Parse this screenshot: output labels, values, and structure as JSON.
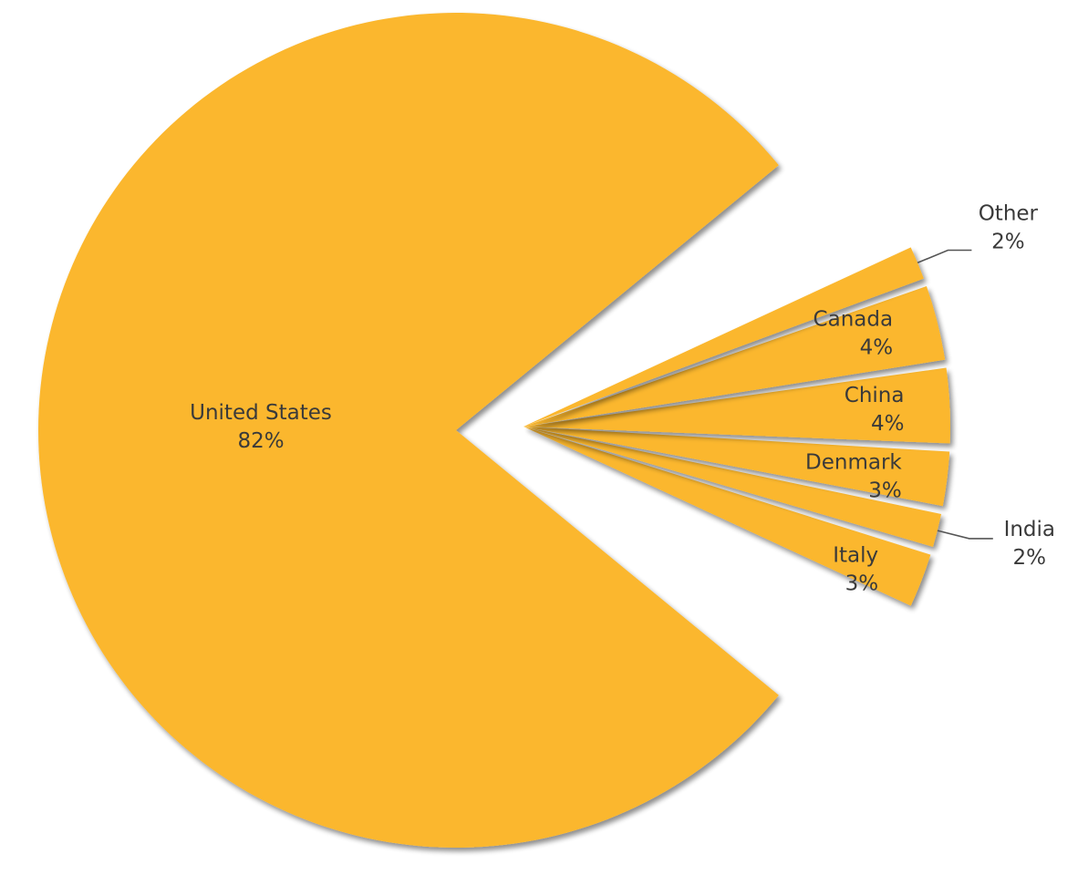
{
  "chart_data": {
    "type": "pie",
    "slices": [
      {
        "label": "United States",
        "value": 82,
        "value_label": "82%"
      },
      {
        "label": "Italy",
        "value": 3,
        "value_label": "3%"
      },
      {
        "label": "India",
        "value": 2,
        "value_label": "2%"
      },
      {
        "label": "Denmark",
        "value": 3,
        "value_label": "3%"
      },
      {
        "label": "China",
        "value": 4,
        "value_label": "4%"
      },
      {
        "label": "Canada",
        "value": 4,
        "value_label": "4%"
      },
      {
        "label": "Other",
        "value": 2,
        "value_label": "2%"
      }
    ],
    "colors": {
      "slice_fill": "#FBB72E",
      "shadow": "#bdbdbd",
      "label_text": "#3a3a3a",
      "leader_line": "#555555"
    }
  }
}
